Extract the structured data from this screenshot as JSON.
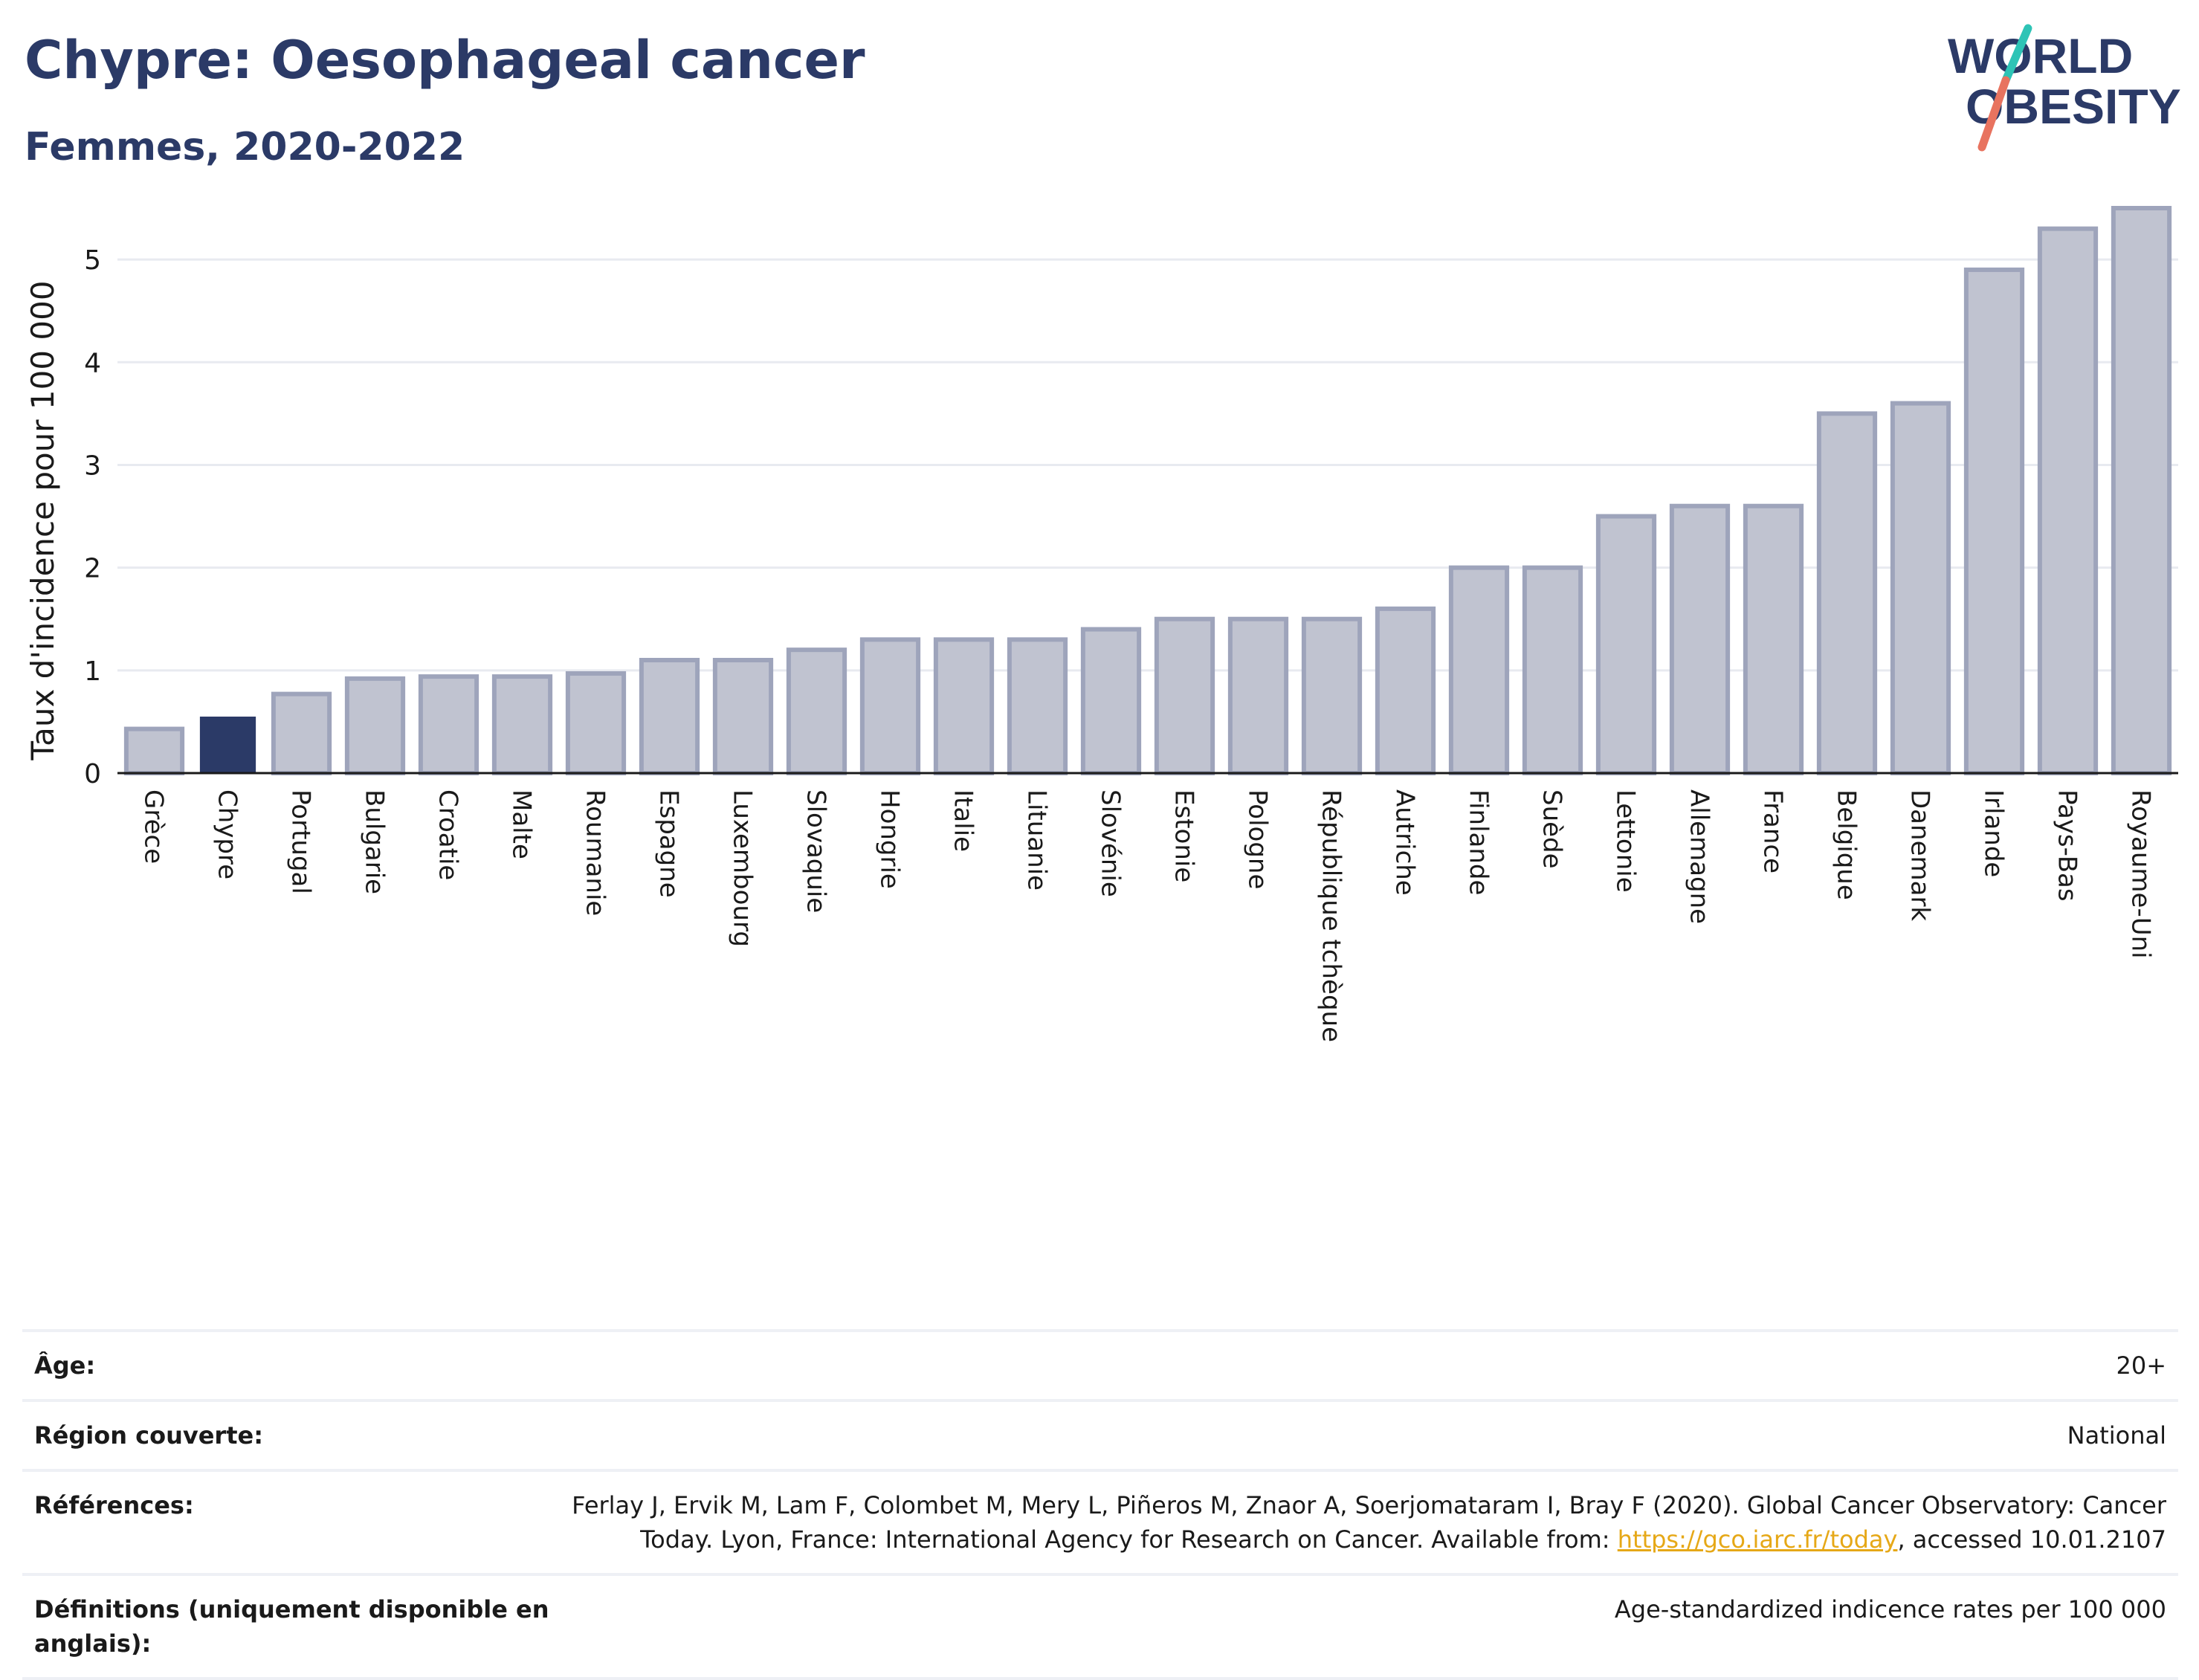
{
  "header": {
    "title": "Chypre: Oesophageal cancer",
    "subtitle": "Femmes, 2020-2022"
  },
  "logo": {
    "line1": "WORLD",
    "line2": "OBESITY",
    "colors": {
      "text": "#2b3a67",
      "slash_top": "#2ec4b6",
      "slash_bottom": "#e8735f"
    }
  },
  "chart_data": {
    "type": "bar",
    "title": "Chypre: Oesophageal cancer",
    "subtitle": "Femmes, 2020-2022",
    "xlabel": "",
    "ylabel": "Taux d'incidence pour 100 000",
    "ylim": [
      0,
      5.5
    ],
    "yticks": [
      0,
      1,
      2,
      3,
      4,
      5
    ],
    "grid": true,
    "highlight": "Chypre",
    "colors": {
      "bar": "#c0c3d0",
      "bar_edge": "#9ea4bb",
      "highlight": "#2b3a67"
    },
    "categories": [
      "Grèce",
      "Chypre",
      "Portugal",
      "Bulgarie",
      "Croatie",
      "Malte",
      "Roumanie",
      "Espagne",
      "Luxembourg",
      "Slovaquie",
      "Hongrie",
      "Italie",
      "Lituanie",
      "Slovénie",
      "Estonie",
      "Pologne",
      "République tchèque",
      "Autriche",
      "Finlande",
      "Suède",
      "Lettonie",
      "Allemagne",
      "France",
      "Belgique",
      "Danemark",
      "Irlande",
      "Pays-Bas",
      "Royaume-Uni"
    ],
    "values": [
      0.43,
      0.55,
      0.77,
      0.92,
      0.94,
      0.94,
      0.97,
      1.1,
      1.1,
      1.2,
      1.3,
      1.3,
      1.3,
      1.4,
      1.5,
      1.5,
      1.5,
      1.6,
      2.0,
      2.0,
      2.5,
      2.6,
      2.6,
      3.5,
      3.6,
      4.9,
      5.3,
      5.5
    ]
  },
  "meta": [
    {
      "label": "Âge:",
      "value": "20+"
    },
    {
      "label": "Région couverte:",
      "value": "National"
    },
    {
      "label": "Références:",
      "value_before": "Ferlay J, Ervik M, Lam F, Colombet M, Mery L, Piñeros M, Znaor A, Soerjomataram I, Bray F (2020). Global Cancer Observatory: Cancer Today. Lyon, France: International Agency for Research on Cancer. Available from: ",
      "link": "https://gco.iarc.fr/today",
      "value_after": ", accessed 10.01.2107"
    },
    {
      "label": "Définitions (uniquement disponible en anglais):",
      "value": "Age-standardized indicence rates per 100 000"
    }
  ]
}
